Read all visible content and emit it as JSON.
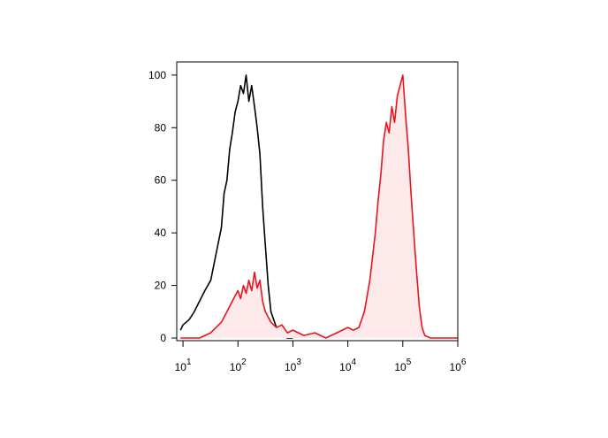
{
  "chart_data": {
    "type": "area",
    "xscale": "log",
    "xlim": [
      7.7,
      1000000
    ],
    "ylim": [
      -1,
      105
    ],
    "xticks": [
      {
        "value": 10,
        "label": "10",
        "superscript": "1"
      },
      {
        "value": 100,
        "label": "10",
        "superscript": "2"
      },
      {
        "value": 1000,
        "label": "10",
        "superscript": "3"
      },
      {
        "value": 10000,
        "label": "10",
        "superscript": "4"
      },
      {
        "value": 100000,
        "label": "10",
        "superscript": "5"
      },
      {
        "value": 1000000,
        "label": "10",
        "superscript": "6"
      }
    ],
    "yticks": [
      0,
      20,
      40,
      60,
      80,
      100
    ],
    "series": [
      {
        "color": "#000000",
        "fill": false,
        "x": [
          9,
          10,
          13,
          16,
          20,
          25,
          32,
          40,
          50,
          56,
          63,
          71,
          79,
          89,
          100,
          112,
          126,
          141,
          158,
          178,
          200,
          224,
          251,
          282,
          316,
          355,
          398,
          501,
          631,
          794,
          1000
        ],
        "values": [
          3,
          5,
          7,
          10,
          14,
          18,
          22,
          32,
          42,
          55,
          60,
          72,
          78,
          86,
          90,
          96,
          93,
          100,
          90,
          96,
          88,
          80,
          70,
          50,
          35,
          20,
          10,
          4,
          1,
          0,
          0
        ]
      },
      {
        "color": "#e8141b",
        "fill": true,
        "fill_color": "#fde8ea",
        "x": [
          9,
          20,
          32,
          40,
          50,
          63,
          79,
          100,
          112,
          126,
          141,
          158,
          178,
          200,
          224,
          251,
          282,
          316,
          398,
          501,
          631,
          794,
          1000,
          1585,
          2512,
          3981,
          6310,
          7943,
          10000,
          12589,
          15849,
          19953,
          25119,
          31623,
          35481,
          39811,
          44668,
          50119,
          56234,
          63096,
          70795,
          79433,
          89125,
          100000,
          112202,
          125893,
          141254,
          158489,
          177828,
          199526,
          223872,
          251189,
          316228,
          1000000
        ],
        "values": [
          0,
          0,
          2,
          4,
          6,
          10,
          14,
          18,
          15,
          20,
          17,
          22,
          18,
          25,
          19,
          22,
          14,
          10,
          6,
          4,
          5,
          2,
          3,
          1,
          2,
          0,
          2,
          3,
          4,
          3,
          4,
          10,
          22,
          40,
          52,
          62,
          75,
          82,
          78,
          88,
          82,
          92,
          96,
          100,
          85,
          72,
          55,
          40,
          25,
          12,
          4,
          1,
          0,
          0
        ]
      }
    ]
  }
}
